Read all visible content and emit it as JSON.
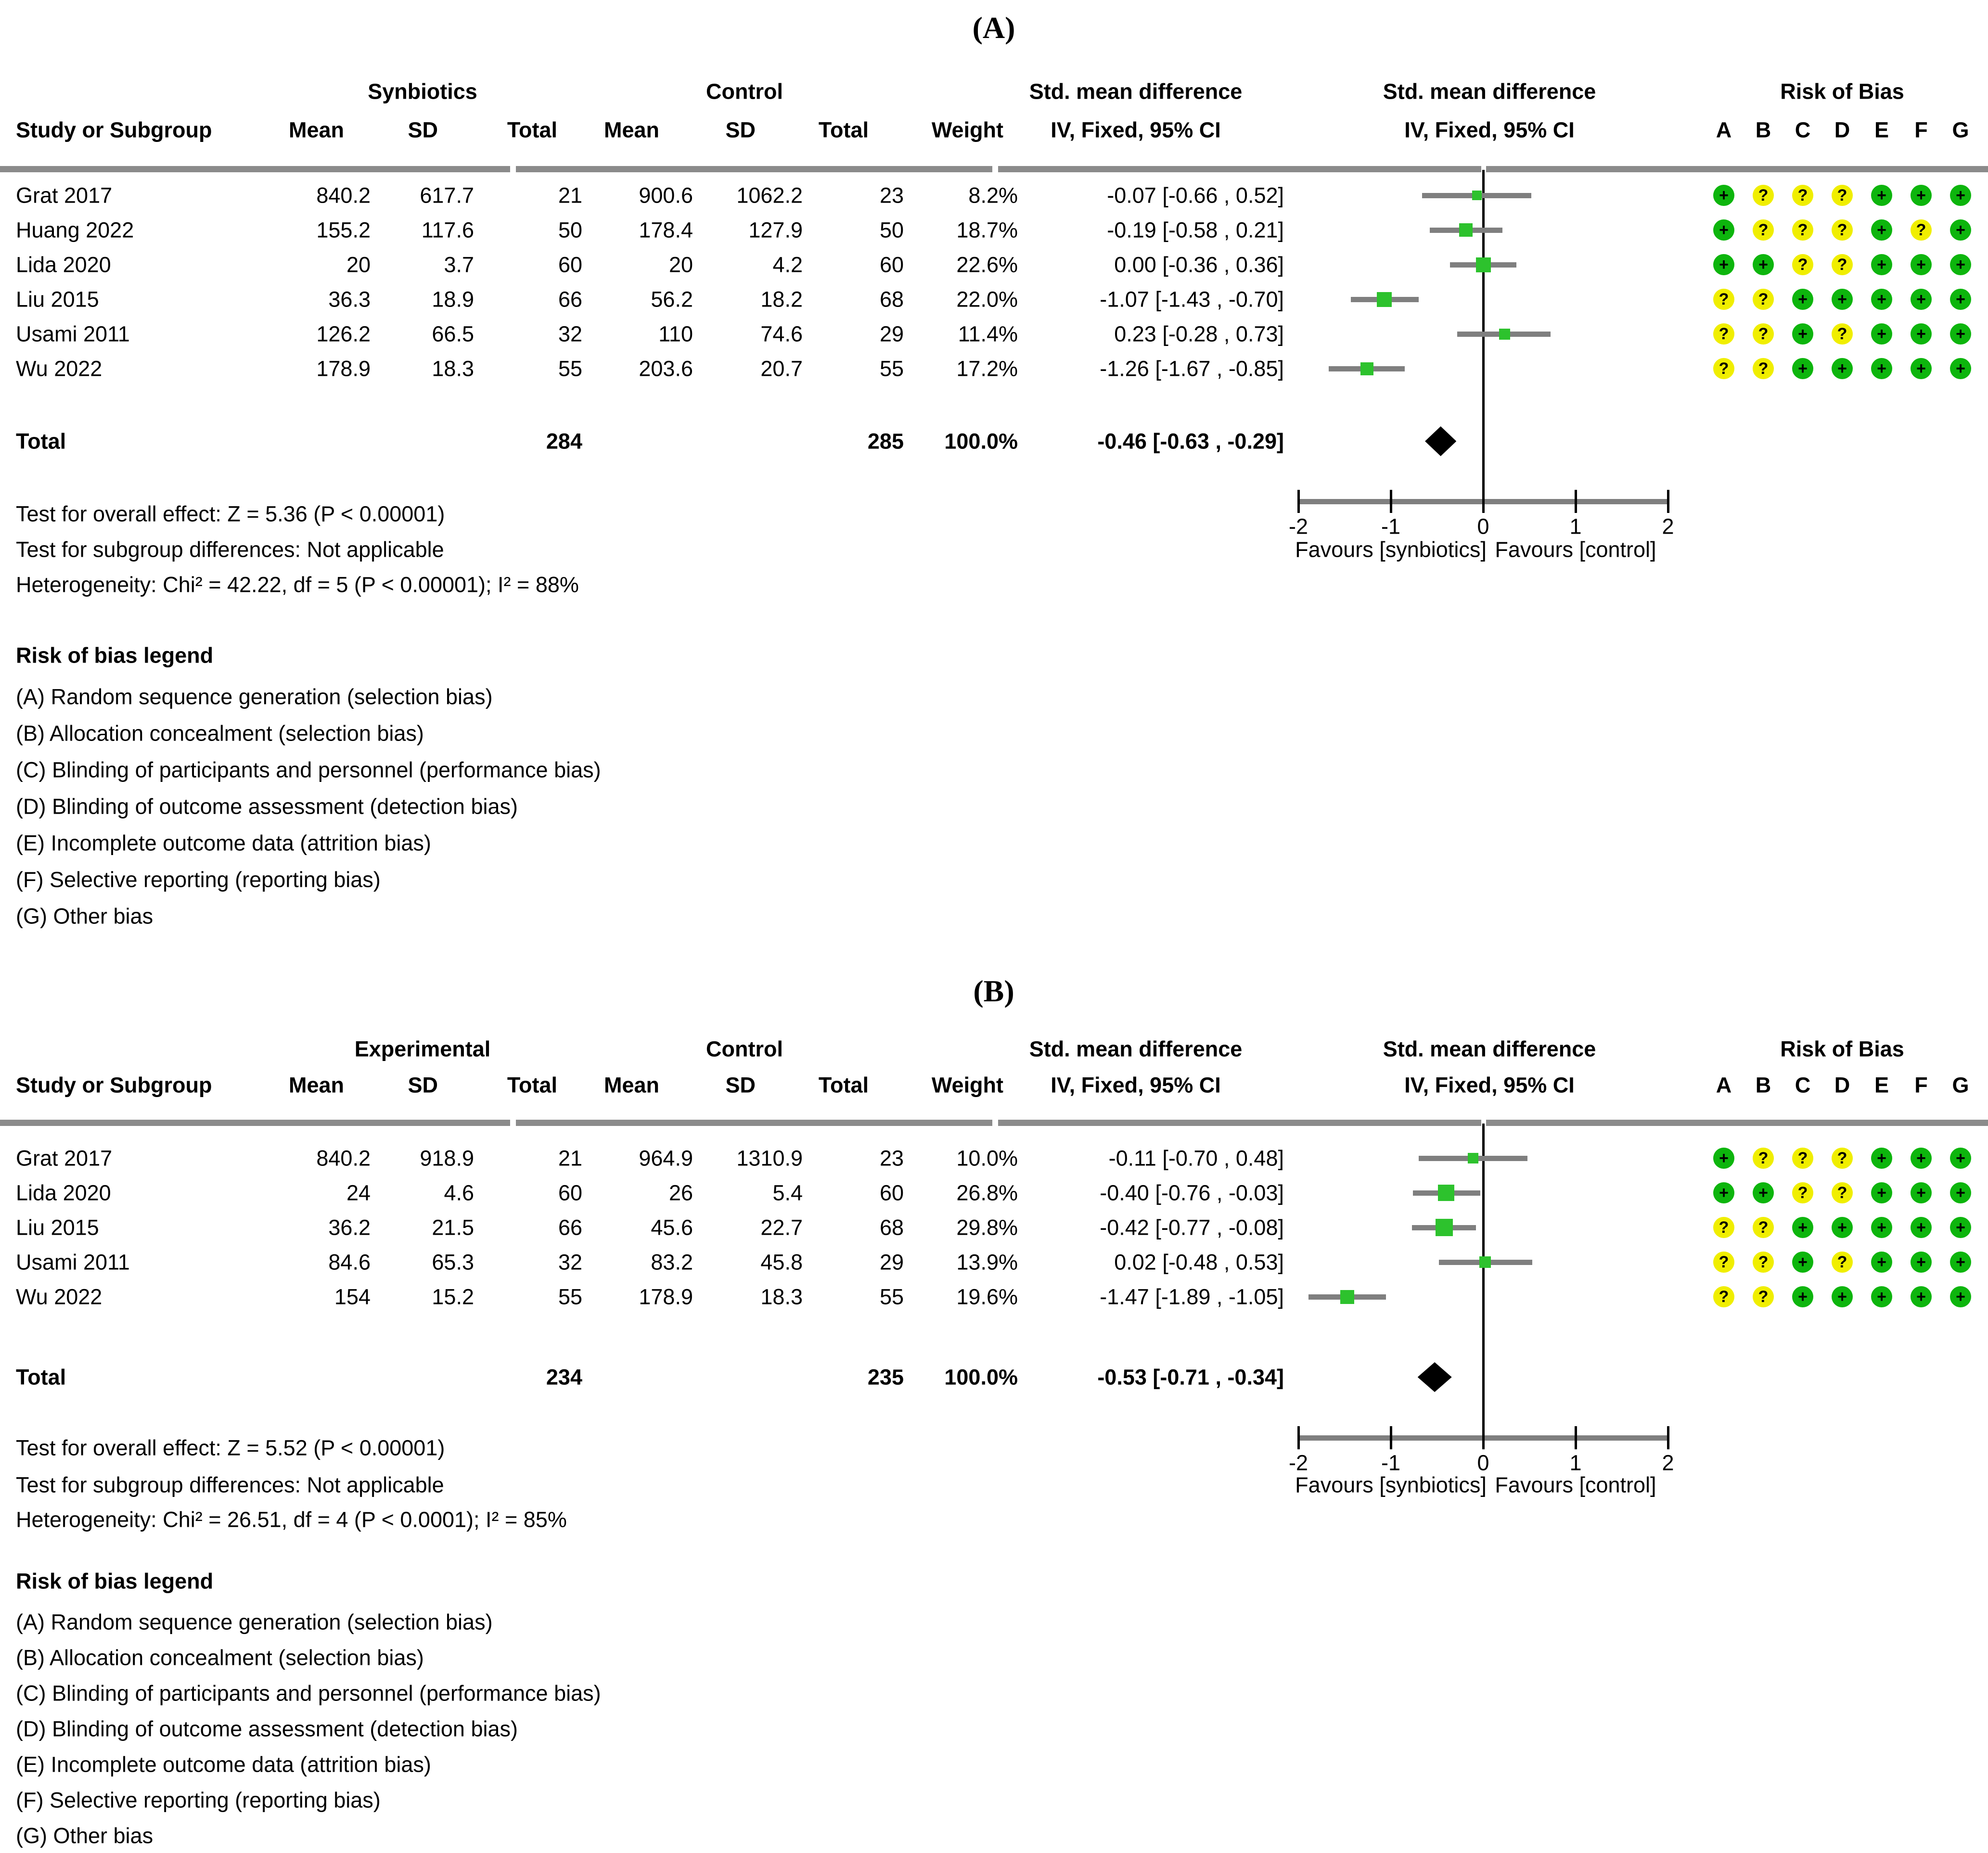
{
  "headers": {
    "study": "Study or Subgroup",
    "mean": "Mean",
    "sd": "SD",
    "total": "Total",
    "weight": "Weight",
    "smd_line1": "Std. mean difference",
    "smd_line2": "IV, Fixed, 95% CI",
    "rob_line1": "Risk of Bias",
    "rob_letters": [
      "A",
      "B",
      "C",
      "D",
      "E",
      "F",
      "G"
    ]
  },
  "legend": {
    "title": "Risk of bias legend",
    "items": [
      "(A) Random sequence generation (selection bias)",
      "(B) Allocation concealment (selection bias)",
      "(C) Blinding of participants and personnel (performance bias)",
      "(D) Blinding of outcome assessment (detection bias)",
      "(E) Incomplete outcome data (attrition bias)",
      "(F) Selective reporting (reporting bias)",
      "(G) Other bias"
    ]
  },
  "colors": {
    "rob_green": "#0db50d",
    "rob_yellow": "#f0ee00",
    "marker_green": "#2dc22d",
    "ci_line_gray": "#7f7f7f",
    "rule_gray": "#8b8b8b",
    "axis_gray": "#7f7f7f",
    "diamond_black": "#000000",
    "zero_line_black": "#000000",
    "text_black": "#000000"
  },
  "chart_data": [
    {
      "type": "forest_plot",
      "panel_label": "(A)",
      "group_experimental": "Synbiotics",
      "group_control": "Control",
      "effect_header": "Std. mean difference",
      "effect_model": "IV, Fixed, 95% CI",
      "rob_header": "Risk of Bias",
      "xlim": [
        -2,
        2
      ],
      "x_ticks": [
        "-2",
        "-1",
        "0",
        "1",
        "2"
      ],
      "favours_left": "Favours [synbiotics]",
      "favours_right": "Favours [control]",
      "studies": [
        {
          "name": "Grat 2017",
          "mean_e": "840.2",
          "sd_e": "617.7",
          "n_e": "21",
          "mean_c": "900.6",
          "sd_c": "1062.2",
          "n_c": "23",
          "weight": "8.2%",
          "weight_pct": 8.2,
          "smd": -0.07,
          "ci_lo": -0.66,
          "ci_hi": 0.52,
          "ci_text": "-0.07 [-0.66 , 0.52]",
          "rob": [
            "+",
            "?",
            "?",
            "?",
            "+",
            "+",
            "+"
          ]
        },
        {
          "name": "Huang 2022",
          "mean_e": "155.2",
          "sd_e": "117.6",
          "n_e": "50",
          "mean_c": "178.4",
          "sd_c": "127.9",
          "n_c": "50",
          "weight": "18.7%",
          "weight_pct": 18.7,
          "smd": -0.19,
          "ci_lo": -0.58,
          "ci_hi": 0.21,
          "ci_text": "-0.19 [-0.58 , 0.21]",
          "rob": [
            "+",
            "?",
            "?",
            "?",
            "+",
            "?",
            "+"
          ]
        },
        {
          "name": "Lida 2020",
          "mean_e": "20",
          "sd_e": "3.7",
          "n_e": "60",
          "mean_c": "20",
          "sd_c": "4.2",
          "n_c": "60",
          "weight": "22.6%",
          "weight_pct": 22.6,
          "smd": 0.0,
          "ci_lo": -0.36,
          "ci_hi": 0.36,
          "ci_text": "0.00 [-0.36 , 0.36]",
          "rob": [
            "+",
            "+",
            "?",
            "?",
            "+",
            "+",
            "+"
          ]
        },
        {
          "name": "Liu 2015",
          "mean_e": "36.3",
          "sd_e": "18.9",
          "n_e": "66",
          "mean_c": "56.2",
          "sd_c": "18.2",
          "n_c": "68",
          "weight": "22.0%",
          "weight_pct": 22.0,
          "smd": -1.07,
          "ci_lo": -1.43,
          "ci_hi": -0.7,
          "ci_text": "-1.07 [-1.43 , -0.70]",
          "rob": [
            "?",
            "?",
            "+",
            "+",
            "+",
            "+",
            "+"
          ]
        },
        {
          "name": "Usami 2011",
          "mean_e": "126.2",
          "sd_e": "66.5",
          "n_e": "32",
          "mean_c": "110",
          "sd_c": "74.6",
          "n_c": "29",
          "weight": "11.4%",
          "weight_pct": 11.4,
          "smd": 0.23,
          "ci_lo": -0.28,
          "ci_hi": 0.73,
          "ci_text": "0.23 [-0.28 , 0.73]",
          "rob": [
            "?",
            "?",
            "+",
            "?",
            "+",
            "+",
            "+"
          ]
        },
        {
          "name": "Wu 2022",
          "mean_e": "178.9",
          "sd_e": "18.3",
          "n_e": "55",
          "mean_c": "203.6",
          "sd_c": "20.7",
          "n_c": "55",
          "weight": "17.2%",
          "weight_pct": 17.2,
          "smd": -1.26,
          "ci_lo": -1.67,
          "ci_hi": -0.85,
          "ci_text": "-1.26 [-1.67 , -0.85]",
          "rob": [
            "?",
            "?",
            "+",
            "+",
            "+",
            "+",
            "+"
          ]
        }
      ],
      "total": {
        "label": "Total",
        "n_e": "284",
        "n_c": "285",
        "weight": "100.0%",
        "smd": -0.46,
        "ci_lo": -0.63,
        "ci_hi": -0.29,
        "ci_text": "-0.46 [-0.63 , -0.29]"
      },
      "footer_lines": [
        "Test for overall effect: Z = 5.36 (P < 0.00001)",
        "Test for subgroup differences: Not applicable",
        "Heterogeneity: Chi² = 42.22, df = 5 (P < 0.00001); I² = 88%"
      ]
    },
    {
      "type": "forest_plot",
      "panel_label": "(B)",
      "group_experimental": "Experimental",
      "group_control": "Control",
      "effect_header": "Std. mean difference",
      "effect_model": "IV, Fixed, 95% CI",
      "rob_header": "Risk of Bias",
      "xlim": [
        -2,
        2
      ],
      "x_ticks": [
        "-2",
        "-1",
        "0",
        "1",
        "2"
      ],
      "favours_left": "Favours [synbiotics]",
      "favours_right": "Favours [control]",
      "studies": [
        {
          "name": "Grat 2017",
          "mean_e": "840.2",
          "sd_e": "918.9",
          "n_e": "21",
          "mean_c": "964.9",
          "sd_c": "1310.9",
          "n_c": "23",
          "weight": "10.0%",
          "weight_pct": 10.0,
          "smd": -0.11,
          "ci_lo": -0.7,
          "ci_hi": 0.48,
          "ci_text": "-0.11 [-0.70 , 0.48]",
          "rob": [
            "+",
            "?",
            "?",
            "?",
            "+",
            "+",
            "+"
          ]
        },
        {
          "name": "Lida 2020",
          "mean_e": "24",
          "sd_e": "4.6",
          "n_e": "60",
          "mean_c": "26",
          "sd_c": "5.4",
          "n_c": "60",
          "weight": "26.8%",
          "weight_pct": 26.8,
          "smd": -0.4,
          "ci_lo": -0.76,
          "ci_hi": -0.03,
          "ci_text": "-0.40 [-0.76 , -0.03]",
          "rob": [
            "+",
            "+",
            "?",
            "?",
            "+",
            "+",
            "+"
          ]
        },
        {
          "name": "Liu 2015",
          "mean_e": "36.2",
          "sd_e": "21.5",
          "n_e": "66",
          "mean_c": "45.6",
          "sd_c": "22.7",
          "n_c": "68",
          "weight": "29.8%",
          "weight_pct": 29.8,
          "smd": -0.42,
          "ci_lo": -0.77,
          "ci_hi": -0.08,
          "ci_text": "-0.42 [-0.77 , -0.08]",
          "rob": [
            "?",
            "?",
            "+",
            "+",
            "+",
            "+",
            "+"
          ]
        },
        {
          "name": "Usami 2011",
          "mean_e": "84.6",
          "sd_e": "65.3",
          "n_e": "32",
          "mean_c": "83.2",
          "sd_c": "45.8",
          "n_c": "29",
          "weight": "13.9%",
          "weight_pct": 13.9,
          "smd": 0.02,
          "ci_lo": -0.48,
          "ci_hi": 0.53,
          "ci_text": "0.02 [-0.48 , 0.53]",
          "rob": [
            "?",
            "?",
            "+",
            "?",
            "+",
            "+",
            "+"
          ]
        },
        {
          "name": "Wu 2022",
          "mean_e": "154",
          "sd_e": "15.2",
          "n_e": "55",
          "mean_c": "178.9",
          "sd_c": "18.3",
          "n_c": "55",
          "weight": "19.6%",
          "weight_pct": 19.6,
          "smd": -1.47,
          "ci_lo": -1.89,
          "ci_hi": -1.05,
          "ci_text": "-1.47 [-1.89 , -1.05]",
          "rob": [
            "?",
            "?",
            "+",
            "+",
            "+",
            "+",
            "+"
          ]
        }
      ],
      "total": {
        "label": "Total",
        "n_e": "234",
        "n_c": "235",
        "weight": "100.0%",
        "smd": -0.53,
        "ci_lo": -0.71,
        "ci_hi": -0.34,
        "ci_text": "-0.53 [-0.71 , -0.34]"
      },
      "footer_lines": [
        "Test for overall effect: Z = 5.52 (P < 0.00001)",
        "Test for subgroup differences: Not applicable",
        "Heterogeneity: Chi² = 26.51, df = 4 (P < 0.0001); I² = 85%"
      ]
    }
  ]
}
